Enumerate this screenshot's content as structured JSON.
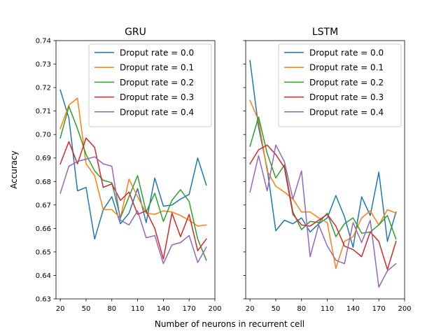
{
  "chart_data": [
    {
      "type": "line",
      "title": "GRU",
      "xlabel": "",
      "ylabel": "Accuracy",
      "xlim": [
        15,
        200
      ],
      "ylim": [
        0.63,
        0.74
      ],
      "xticks": [
        "20",
        "50",
        "80",
        "110",
        "140",
        "170",
        "200"
      ],
      "yticks": [
        "0.63",
        "0.64",
        "0.65",
        "0.66",
        "0.67",
        "0.68",
        "0.69",
        "0.70",
        "0.71",
        "0.72",
        "0.73",
        "0.74"
      ],
      "legend": "top-right",
      "x": [
        20,
        30,
        40,
        50,
        60,
        70,
        80,
        90,
        100,
        110,
        120,
        130,
        140,
        150,
        160,
        170,
        180,
        190
      ],
      "series": [
        {
          "name": "Droput rate = 0.0",
          "color": "#1f77b4",
          "values": [
            0.719,
            0.707,
            0.676,
            0.6775,
            0.6555,
            0.668,
            0.6735,
            0.662,
            0.6665,
            0.677,
            0.6625,
            0.6815,
            0.6695,
            0.67,
            0.6725,
            0.6745,
            0.69,
            0.6785
          ]
        },
        {
          "name": "Droput rate = 0.1",
          "color": "#ff7f0e",
          "values": [
            0.7025,
            0.7125,
            0.7155,
            0.6875,
            0.6825,
            0.668,
            0.668,
            0.6645,
            0.681,
            0.6735,
            0.6665,
            0.666,
            0.6675,
            0.667,
            0.6655,
            0.6635,
            0.661,
            0.6615
          ]
        },
        {
          "name": "Droput rate = 0.2",
          "color": "#2ca02c",
          "values": [
            0.6985,
            0.712,
            0.7025,
            0.6915,
            0.6845,
            0.6805,
            0.6795,
            0.6645,
            0.6735,
            0.6825,
            0.667,
            0.675,
            0.663,
            0.672,
            0.6765,
            0.6715,
            0.6555,
            0.6465
          ]
        },
        {
          "name": "Droput rate = 0.3",
          "color": "#d62728",
          "values": [
            0.6875,
            0.697,
            0.6875,
            0.6985,
            0.6945,
            0.6775,
            0.679,
            0.672,
            0.6755,
            0.666,
            0.6675,
            0.66,
            0.647,
            0.6665,
            0.6565,
            0.666,
            0.6505,
            0.6555
          ]
        },
        {
          "name": "Droput rate = 0.4",
          "color": "#9467bd",
          "values": [
            0.675,
            0.6865,
            0.6885,
            0.6895,
            0.6905,
            0.6875,
            0.6865,
            0.6635,
            0.6615,
            0.6675,
            0.656,
            0.657,
            0.645,
            0.653,
            0.654,
            0.657,
            0.6455,
            0.652
          ]
        }
      ]
    },
    {
      "type": "line",
      "title": "LSTM",
      "xlabel": "",
      "ylabel": "",
      "xlim": [
        15,
        200
      ],
      "ylim": [
        0.63,
        0.74
      ],
      "xticks": [
        "20",
        "50",
        "80",
        "110",
        "140",
        "170",
        "200"
      ],
      "legend": "top-right",
      "x": [
        20,
        30,
        40,
        50,
        60,
        70,
        80,
        90,
        100,
        110,
        120,
        130,
        140,
        150,
        160,
        170,
        180,
        190
      ],
      "series": [
        {
          "name": "Droput rate = 0.0",
          "color": "#1f77b4",
          "values": [
            0.7315,
            0.703,
            0.6855,
            0.659,
            0.6635,
            0.662,
            0.6645,
            0.6585,
            0.662,
            0.6645,
            0.674,
            0.665,
            0.652,
            0.6735,
            0.6655,
            0.684,
            0.6545,
            0.667
          ]
        },
        {
          "name": "Droput rate = 0.1",
          "color": "#ff7f0e",
          "values": [
            0.7145,
            0.706,
            0.6845,
            0.678,
            0.6755,
            0.6725,
            0.667,
            0.667,
            0.6645,
            0.6625,
            0.643,
            0.6545,
            0.6565,
            0.6645,
            0.6675,
            0.6615,
            0.668,
            0.6665
          ]
        },
        {
          "name": "Droput rate = 0.2",
          "color": "#2ca02c",
          "values": [
            0.695,
            0.7075,
            0.692,
            0.6815,
            0.687,
            0.667,
            0.6595,
            0.663,
            0.6625,
            0.6665,
            0.6565,
            0.662,
            0.6645,
            0.658,
            0.6585,
            0.6615,
            0.6655,
            0.6555
          ]
        },
        {
          "name": "Droput rate = 0.3",
          "color": "#d62728",
          "values": [
            0.6875,
            0.6935,
            0.6955,
            0.6915,
            0.686,
            0.666,
            0.6615,
            0.661,
            0.6635,
            0.666,
            0.661,
            0.6525,
            0.651,
            0.648,
            0.6585,
            0.6545,
            0.6425,
            0.6545
          ]
        },
        {
          "name": "Droput rate = 0.4",
          "color": "#9467bd",
          "values": [
            0.6755,
            0.691,
            0.676,
            0.6955,
            0.6885,
            0.6725,
            0.6845,
            0.648,
            0.6615,
            0.6525,
            0.6465,
            0.645,
            0.6625,
            0.654,
            0.6635,
            0.635,
            0.642,
            0.645
          ]
        }
      ]
    }
  ],
  "figure": {
    "xlabel": "Number of neurons in recurrent cell"
  }
}
